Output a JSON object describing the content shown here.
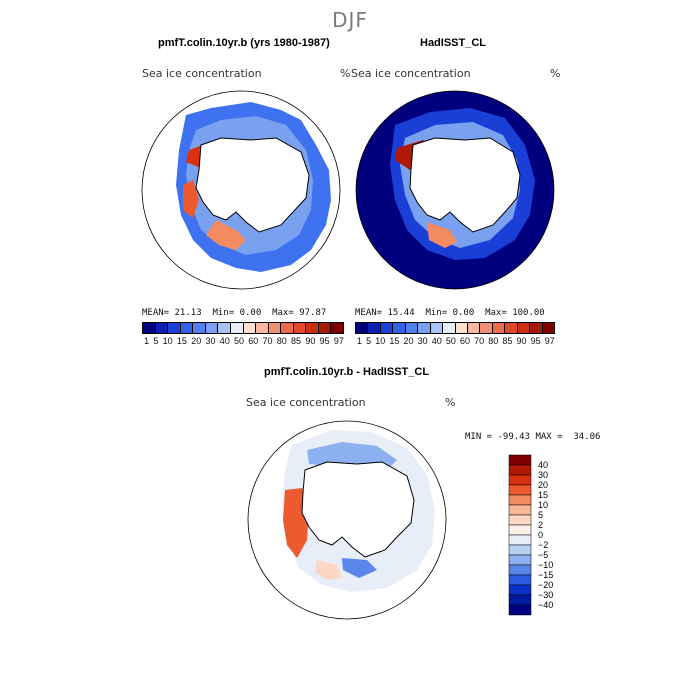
{
  "page_title": "DJF",
  "panels": [
    {
      "title": "pmfT.colin.10yr.b (yrs 1980-1987)",
      "field_label": "Sea ice concentration",
      "unit": "%",
      "stats": {
        "mean_label": "MEAN=",
        "mean": "21.13",
        "min_label": "Min=",
        "min": "0.00",
        "max_label": "Max=",
        "max": "97.87"
      }
    },
    {
      "title": "HadISST_CL",
      "field_label": "Sea ice concentration",
      "unit": "%",
      "stats": {
        "mean_label": "MEAN=",
        "mean": "15.44",
        "min_label": "Min=",
        "min": "0.00",
        "max_label": "Max=",
        "max": "100.00"
      }
    }
  ],
  "concentration_legend": {
    "ticks": [
      "1",
      "5",
      "10",
      "15",
      "20",
      "30",
      "40",
      "50",
      "60",
      "70",
      "80",
      "85",
      "90",
      "95",
      "97"
    ],
    "colors": [
      "#00007f",
      "#0b1fb0",
      "#1a3fd6",
      "#3560e8",
      "#5580ef",
      "#7aa0f0",
      "#a8c4f2",
      "#e6eef8",
      "#fde0d0",
      "#f8b8a0",
      "#f29075",
      "#ea6a4b",
      "#e04a2a",
      "#cc2e12",
      "#a81a08",
      "#7f0000"
    ]
  },
  "difference_panel": {
    "title": "pmfT.colin.10yr.b - HadISST_CL",
    "field_label": "Sea ice concentration",
    "unit": "%",
    "range_text": "MIN = -99.43 MAX =  34.06"
  },
  "difference_legend": {
    "labels": [
      "40",
      "30",
      "20",
      "15",
      "10",
      "5",
      "2",
      "0",
      "−2",
      "−5",
      "−10",
      "−15",
      "−20",
      "−30",
      "−40"
    ],
    "colors": [
      "#7f0000",
      "#b01a05",
      "#d93010",
      "#ee5a30",
      "#f48a60",
      "#f8b898",
      "#fcd8c4",
      "#fdf0e8",
      "#e8eef8",
      "#b8d0f4",
      "#8cb0f0",
      "#5a86ea",
      "#2c5ae0",
      "#0a30c8",
      "#001aa0",
      "#000080"
    ]
  }
}
